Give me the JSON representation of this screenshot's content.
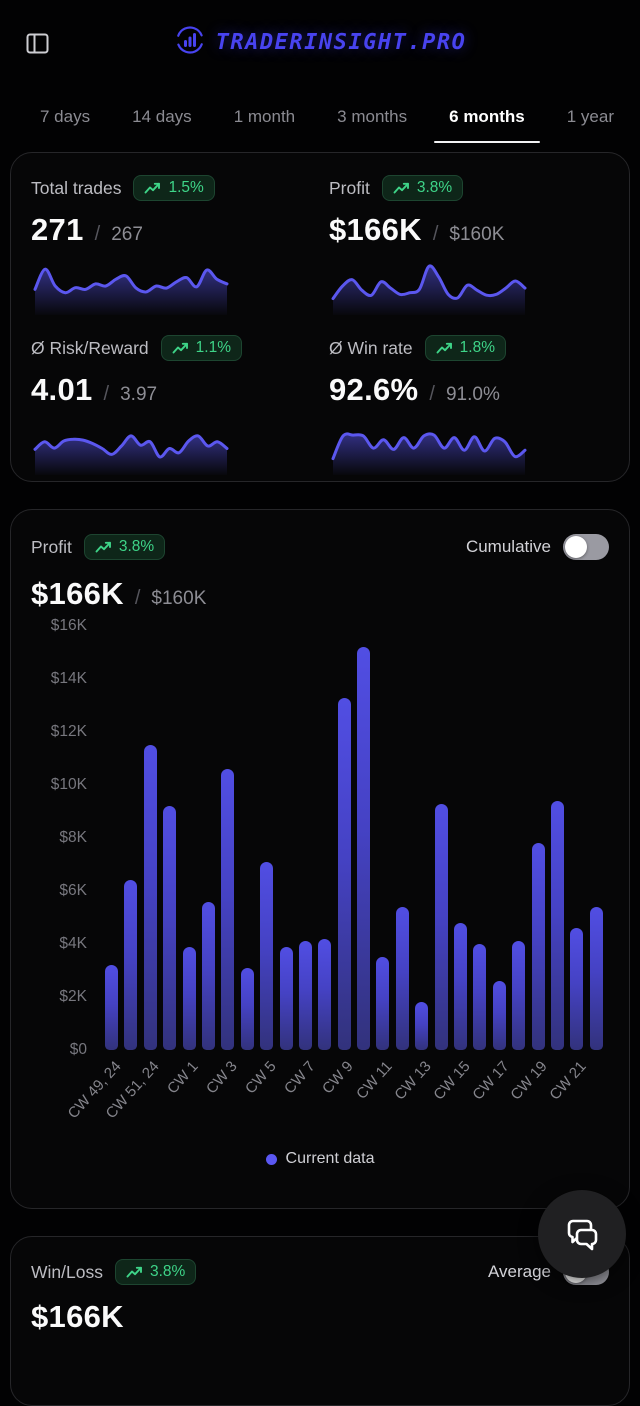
{
  "header": {
    "title": "TRADERINSIGHT.PRO"
  },
  "tabs": [
    {
      "label": "7 days",
      "active": false
    },
    {
      "label": "14 days",
      "active": false
    },
    {
      "label": "1 month",
      "active": false
    },
    {
      "label": "3 months",
      "active": false
    },
    {
      "label": "6 months",
      "active": true
    },
    {
      "label": "1 year",
      "active": false
    }
  ],
  "ui": {
    "separator": "/"
  },
  "stats_card": {
    "cells": [
      {
        "id": "total-trades",
        "label": "Total trades",
        "badge": "1.5%",
        "value": "271",
        "compare": "267",
        "spark": [
          0.42,
          0.9,
          0.5,
          0.34,
          0.46,
          0.42,
          0.55,
          0.5,
          0.66,
          0.74,
          0.45,
          0.36,
          0.5,
          0.45,
          0.6,
          0.7,
          0.48,
          0.88,
          0.66,
          0.55
        ]
      },
      {
        "id": "profit",
        "label": "Profit",
        "badge": "3.8%",
        "value": "$166K",
        "compare": "$160K",
        "spark": [
          0.2,
          0.5,
          0.65,
          0.4,
          0.28,
          0.6,
          0.45,
          0.3,
          0.34,
          0.42,
          0.97,
          0.72,
          0.3,
          0.22,
          0.52,
          0.4,
          0.28,
          0.3,
          0.45,
          0.62,
          0.45
        ]
      },
      {
        "id": "risk-reward",
        "label": "Ø Risk/Reward",
        "badge": "1.1%",
        "value": "4.01",
        "compare": "3.97",
        "spark": [
          0.42,
          0.6,
          0.45,
          0.62,
          0.66,
          0.64,
          0.56,
          0.44,
          0.3,
          0.5,
          0.74,
          0.52,
          0.6,
          0.24,
          0.44,
          0.34,
          0.62,
          0.74,
          0.5,
          0.6,
          0.44
        ]
      },
      {
        "id": "win-rate",
        "label": "Ø Win rate",
        "badge": "1.8%",
        "value": "92.6%",
        "compare": "91.0%",
        "spark": [
          0.2,
          0.74,
          0.76,
          0.74,
          0.45,
          0.65,
          0.42,
          0.7,
          0.45,
          0.74,
          0.76,
          0.45,
          0.7,
          0.4,
          0.72,
          0.38,
          0.68,
          0.6,
          0.25,
          0.4
        ]
      }
    ]
  },
  "profit_card": {
    "label": "Profit",
    "badge": "3.8%",
    "toggle_label": "Cumulative",
    "toggle_state": "off",
    "value": "$166K",
    "compare": "$160K",
    "legend": "Current data"
  },
  "chart_data": {
    "type": "bar",
    "title": "Profit",
    "values_usd": [
      3200,
      6400,
      11500,
      9200,
      3900,
      5600,
      10600,
      3100,
      7100,
      3900,
      4100,
      4200,
      13300,
      15200,
      3500,
      5400,
      1800,
      9300,
      4800,
      4000,
      2600,
      4100,
      7800,
      9400,
      4600,
      5400
    ],
    "x_tick_labels": [
      "CW 49, 24",
      "CW 51, 24",
      "CW 1",
      "CW 3",
      "CW 5",
      "CW 7",
      "CW 9",
      "CW 11",
      "CW 13",
      "CW 15",
      "CW 17",
      "CW 19",
      "CW 21"
    ],
    "x_tick_every": 2,
    "y_ticks": [
      "$16K",
      "$14K",
      "$12K",
      "$10K",
      "$8K",
      "$6K",
      "$4K",
      "$2K",
      "$0"
    ],
    "ylim": [
      0,
      16000
    ],
    "grid": false,
    "legend": [
      "Current data"
    ],
    "legend_position": "bottom"
  },
  "winloss_card": {
    "label": "Win/Loss",
    "badge": "3.8%",
    "toggle_label": "Average",
    "toggle_state": "off",
    "value": "$166K"
  },
  "icons": {
    "sidebar": "panel-left-icon",
    "brand": "bar-chart-circle-icon",
    "trend": "trending-up-icon",
    "legend": "dot-icon",
    "fab": "chat-bubbles-icon"
  },
  "colors": {
    "accent": "#4843ef",
    "bar_top": "#514ee3",
    "bar_bottom": "#32327c",
    "positive": "#3ed488",
    "sparkline": "#5b57ef",
    "tab_active": "#ffffff",
    "toggle_track": "#9a9aa2"
  }
}
